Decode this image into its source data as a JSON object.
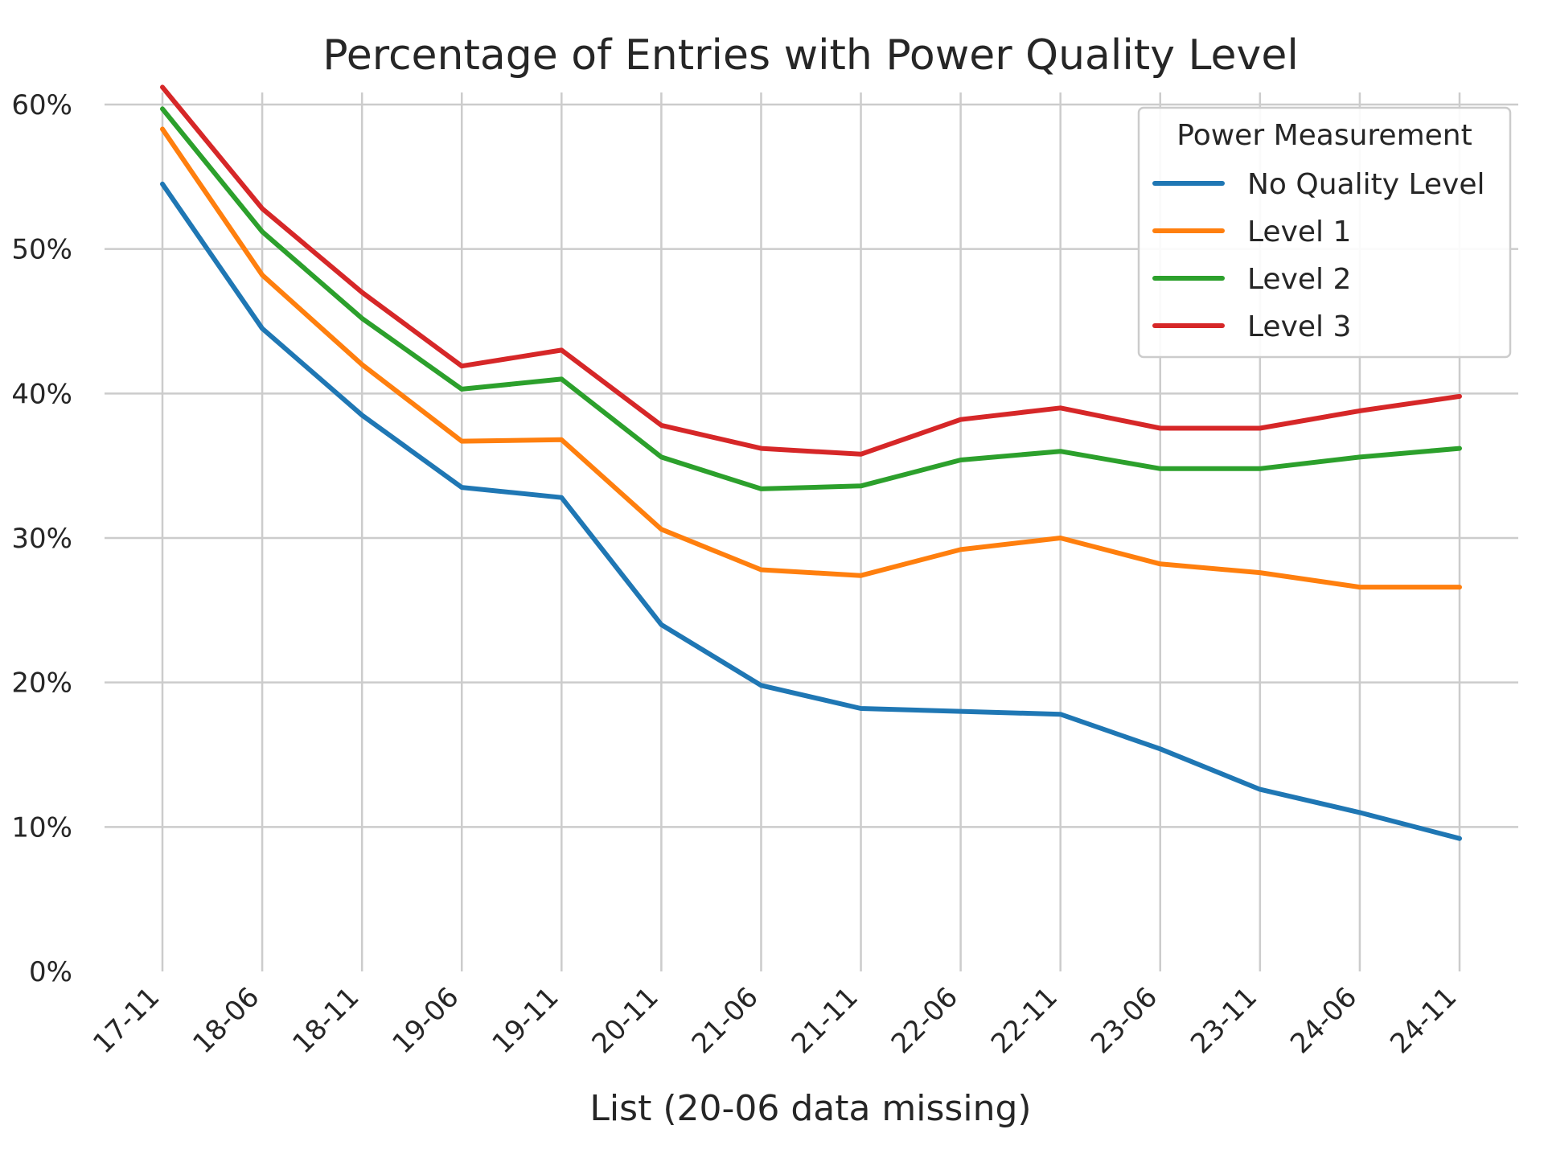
{
  "chart_data": {
    "type": "line",
    "title": "Percentage of Entries with Power Quality Level",
    "xlabel": "List (20-06 data missing)",
    "ylabel": "",
    "categories": [
      "17-11",
      "18-06",
      "18-11",
      "19-06",
      "19-11",
      "20-11",
      "21-06",
      "21-11",
      "22-06",
      "22-11",
      "23-06",
      "23-11",
      "24-06",
      "24-11"
    ],
    "ylim": [
      0,
      60
    ],
    "yticks": [
      "0%",
      "10%",
      "20%",
      "30%",
      "40%",
      "50%",
      "60%"
    ],
    "grid": true,
    "legend": {
      "title": "Power Measurement",
      "position": "top-right"
    },
    "series": [
      {
        "name": "No Quality Level",
        "color": "#1f77b4",
        "values": [
          54.5,
          44.5,
          38.5,
          33.5,
          32.8,
          24.0,
          19.8,
          18.2,
          18.0,
          17.8,
          15.4,
          12.6,
          11.0,
          9.2
        ]
      },
      {
        "name": "Level 1",
        "color": "#ff7f0e",
        "values": [
          58.3,
          48.2,
          42.0,
          36.7,
          36.8,
          30.6,
          27.8,
          27.4,
          29.2,
          30.0,
          28.2,
          27.6,
          26.6,
          26.6
        ]
      },
      {
        "name": "Level 2",
        "color": "#2ca02c",
        "values": [
          59.7,
          51.2,
          45.2,
          40.3,
          41.0,
          35.6,
          33.4,
          33.6,
          35.4,
          36.0,
          34.8,
          34.8,
          35.6,
          36.2
        ]
      },
      {
        "name": "Level 3",
        "color": "#d62728",
        "values": [
          61.2,
          52.8,
          47.0,
          41.9,
          43.0,
          37.8,
          36.2,
          35.8,
          38.2,
          39.0,
          37.6,
          37.6,
          38.8,
          39.8
        ]
      }
    ]
  }
}
